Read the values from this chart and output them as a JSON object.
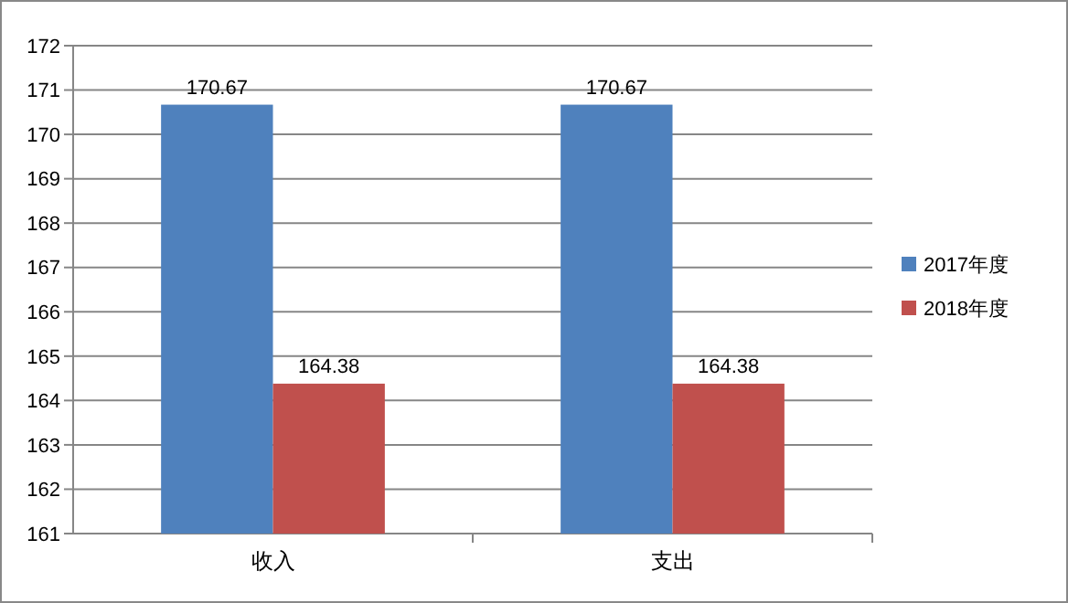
{
  "chart_data": {
    "type": "bar",
    "categories": [
      "收入",
      "支出"
    ],
    "series": [
      {
        "name": "2017年度",
        "color": "#4f81bd",
        "values": [
          170.67,
          170.67
        ]
      },
      {
        "name": "2018年度",
        "color": "#c0504d",
        "values": [
          164.38,
          164.38
        ]
      }
    ],
    "ylim": [
      161,
      172
    ],
    "yticks": [
      161,
      162,
      163,
      164,
      165,
      166,
      167,
      168,
      169,
      170,
      171,
      172
    ],
    "grid": "y",
    "legend": "right",
    "data_labels": true
  }
}
